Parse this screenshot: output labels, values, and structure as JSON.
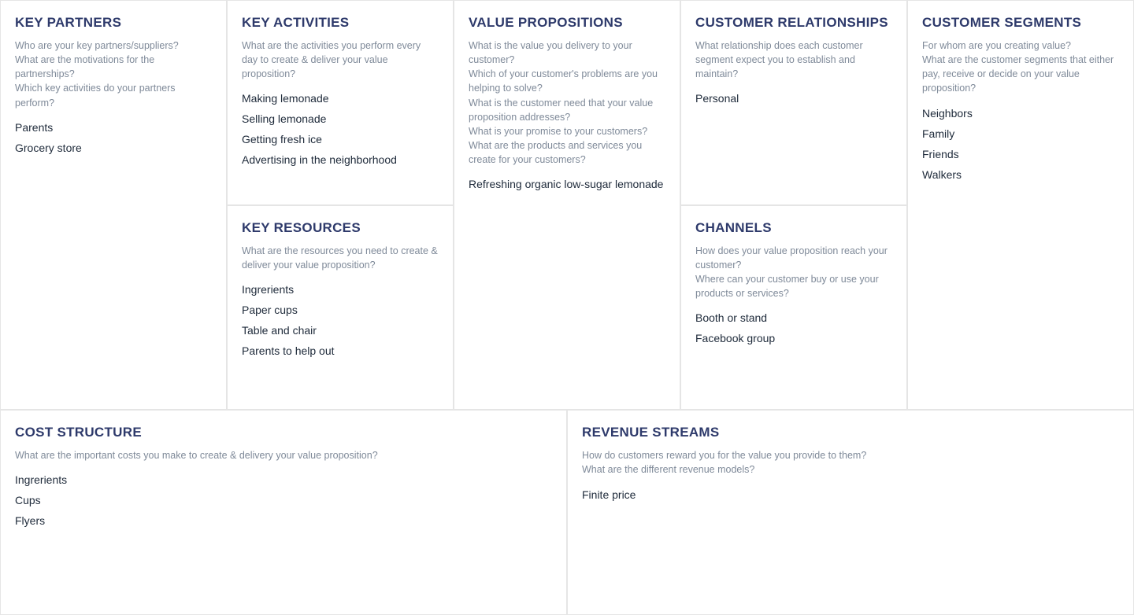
{
  "layout": {
    "type": "business-model-canvas",
    "grid_cols": 10,
    "grid_rows": 3,
    "border_color": "#e5e5e5",
    "background_color": "#ffffff",
    "title_color": "#2e3a6b",
    "title_fontsize": 17,
    "desc_color": "#7f8a99",
    "desc_fontsize": 12.5,
    "item_color": "#1e2a3a",
    "item_fontsize": 14,
    "font_family": "Segoe UI, sans-serif"
  },
  "blocks": {
    "key_partners": {
      "title": "KEY PARTNERS",
      "desc": "Who are your key partners/suppliers?\nWhat are the motivations for the partnerships?\nWhich key activities do your partners perform?",
      "items": [
        "Parents",
        "Grocery store"
      ]
    },
    "key_activities": {
      "title": "KEY ACTIVITIES",
      "desc": "What are the activities you perform every day to create & deliver your value proposition?",
      "items": [
        "Making lemonade",
        "Selling lemonade",
        "Getting fresh ice",
        "Advertising in the neighborhood"
      ]
    },
    "key_resources": {
      "title": "KEY RESOURCES",
      "desc": "What are the resources you need to create & deliver your value proposition?",
      "items": [
        "Ingrerients",
        "Paper cups",
        "Table and chair",
        "Parents to help out"
      ]
    },
    "value_propositions": {
      "title": "VALUE PROPOSITIONS",
      "desc": "What is the value you delivery to your customer?\nWhich of your customer's problems are you helping to solve?\nWhat is the customer need that your value proposition addresses?\nWhat is your promise to your customers?\nWhat are the products and services you create for your customers?",
      "items": [
        "Refreshing organic low-sugar lemonade"
      ]
    },
    "customer_relationships": {
      "title": "CUSTOMER RELATIONSHIPS",
      "desc": "What relationship does each customer segment expect you to establish and maintain?",
      "items": [
        "Personal"
      ]
    },
    "channels": {
      "title": "CHANNELS",
      "desc": "How does your value proposition reach your customer?\nWhere can your customer buy or use your products or services?",
      "items": [
        "Booth or stand",
        "Facebook group"
      ]
    },
    "customer_segments": {
      "title": "CUSTOMER SEGMENTS",
      "desc": "For whom are you creating value?\nWhat are the customer segments that either pay, receive or decide on your value proposition?",
      "items": [
        "Neighbors",
        "Family",
        "Friends",
        "Walkers"
      ]
    },
    "cost_structure": {
      "title": "COST STRUCTURE",
      "desc": "What are the important costs you make to create & delivery your value proposition?",
      "items": [
        "Ingrerients",
        "Cups",
        "Flyers"
      ]
    },
    "revenue_streams": {
      "title": "REVENUE STREAMS",
      "desc": "How do customers reward you for the value you provide to them?\nWhat are the different revenue models?",
      "items": [
        "Finite price"
      ]
    }
  }
}
